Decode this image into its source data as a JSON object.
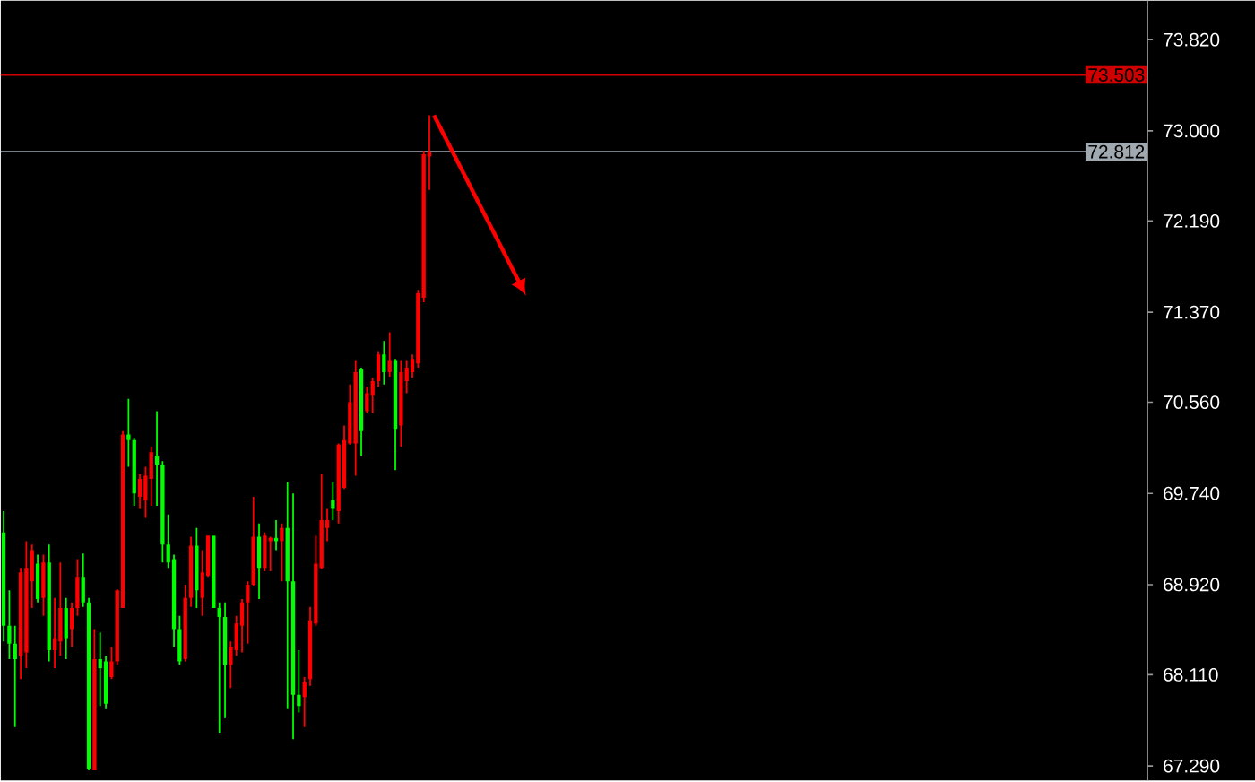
{
  "chart_data": {
    "type": "candlestick",
    "categories": [
      null,
      null,
      null,
      null,
      null,
      null,
      null,
      null,
      null,
      null,
      null,
      null,
      null,
      null,
      null,
      null,
      null,
      null,
      null,
      null,
      null,
      null,
      null,
      null,
      null,
      null,
      null,
      null,
      null,
      null,
      null,
      null,
      null,
      null,
      null,
      null,
      null,
      null,
      null,
      null,
      null,
      null,
      null,
      null,
      null,
      null,
      null,
      null,
      null,
      null,
      null,
      null,
      null,
      null,
      null,
      null,
      null,
      null,
      null,
      null,
      null,
      null,
      null,
      null,
      null,
      null,
      null,
      null,
      null,
      null,
      null,
      null,
      null,
      null,
      null,
      null,
      null,
      null,
      null,
      null,
      null,
      null,
      null,
      null,
      null,
      null,
      null,
      null,
      null,
      null,
      null,
      null,
      null,
      null,
      null,
      null,
      null,
      null,
      null,
      null,
      null,
      null,
      null,
      null,
      null,
      null,
      null,
      null,
      null,
      null,
      null,
      null,
      null,
      null,
      null,
      null,
      null,
      null,
      null,
      null,
      null,
      null,
      null,
      null,
      null,
      null,
      null,
      null,
      null,
      null,
      null,
      null,
      null,
      null,
      null,
      null,
      null,
      null,
      null,
      null,
      null,
      null,
      null,
      null,
      null,
      null,
      null,
      null,
      null,
      null,
      null,
      null,
      null,
      null,
      null,
      null,
      null,
      null,
      null,
      null,
      null,
      null,
      null,
      null,
      null,
      null,
      null,
      null,
      null,
      null,
      null,
      null,
      null,
      null,
      null,
      null,
      null,
      null,
      null,
      null,
      null,
      null,
      null,
      null,
      null,
      null,
      null,
      null,
      null,
      null,
      null,
      null,
      null,
      null,
      null,
      null,
      null,
      null,
      null,
      null,
      null,
      null
    ],
    "ohlc": [
      [
        69.39,
        69.58,
        68.41,
        68.55
      ],
      [
        68.55,
        68.87,
        68.25,
        68.39
      ],
      [
        68.39,
        68.55,
        67.64,
        68.25
      ],
      [
        68.28,
        69.07,
        68.07,
        69.03
      ],
      [
        68.31,
        69.31,
        68.17,
        69.07
      ],
      [
        68.95,
        69.28,
        68.71,
        69.23
      ],
      [
        69.11,
        69.19,
        68.76,
        68.79
      ],
      [
        68.8,
        69.19,
        68.64,
        69.12
      ],
      [
        69.12,
        69.28,
        68.23,
        68.33
      ],
      [
        68.33,
        68.8,
        68.17,
        68.44
      ],
      [
        68.41,
        69.12,
        68.28,
        68.71
      ],
      [
        68.71,
        68.8,
        68.25,
        68.44
      ],
      [
        68.52,
        68.76,
        68.36,
        68.71
      ],
      [
        68.71,
        69.15,
        68.64,
        68.99
      ],
      [
        68.99,
        69.2,
        68.72,
        68.76
      ],
      [
        68.76,
        68.8,
        67.25,
        67.26
      ],
      [
        67.25,
        68.52,
        67.25,
        68.25
      ],
      [
        68.25,
        68.49,
        67.83,
        68.17
      ],
      [
        68.23,
        68.28,
        67.8,
        67.85
      ],
      [
        68.09,
        68.36,
        68.07,
        68.23
      ],
      [
        68.23,
        68.88,
        68.2,
        68.87
      ],
      [
        68.71,
        70.3,
        68.71,
        70.27
      ],
      [
        70.27,
        70.59,
        69.98,
        70.22
      ],
      [
        70.22,
        70.24,
        69.63,
        69.74
      ],
      [
        69.71,
        69.92,
        69.6,
        69.87
      ],
      [
        69.68,
        69.98,
        69.52,
        69.9
      ],
      [
        69.87,
        70.16,
        69.63,
        70.11
      ],
      [
        70.08,
        70.48,
        69.63,
        70.0
      ],
      [
        70.0,
        70.03,
        69.12,
        69.28
      ],
      [
        69.28,
        69.55,
        69.07,
        69.12
      ],
      [
        69.15,
        69.19,
        68.36,
        68.52
      ],
      [
        68.52,
        68.64,
        68.2,
        68.23
      ],
      [
        68.25,
        68.92,
        68.23,
        68.8
      ],
      [
        68.8,
        69.35,
        68.72,
        69.27
      ],
      [
        69.27,
        69.43,
        68.71,
        68.87
      ],
      [
        68.8,
        69.23,
        68.64,
        69.03
      ],
      [
        69.0,
        69.36,
        68.99,
        69.36
      ],
      [
        69.36,
        69.36,
        68.71,
        68.71
      ],
      [
        68.71,
        68.76,
        67.59,
        68.63
      ],
      [
        68.63,
        68.76,
        67.72,
        68.2
      ],
      [
        68.2,
        68.41,
        67.99,
        68.36
      ],
      [
        68.33,
        68.64,
        68.28,
        68.57
      ],
      [
        68.55,
        68.79,
        68.31,
        68.76
      ],
      [
        68.76,
        68.95,
        68.39,
        68.92
      ],
      [
        68.92,
        69.71,
        68.91,
        69.35
      ],
      [
        69.35,
        69.47,
        68.79,
        69.07
      ],
      [
        69.07,
        69.39,
        69.04,
        69.36
      ],
      [
        69.31,
        69.35,
        69.04,
        69.34
      ],
      [
        69.34,
        69.5,
        69.23,
        69.31
      ],
      [
        69.31,
        69.47,
        68.95,
        69.43
      ],
      [
        69.43,
        69.84,
        67.8,
        68.95
      ],
      [
        68.95,
        69.74,
        67.53,
        67.93
      ],
      [
        67.93,
        68.33,
        67.77,
        67.83
      ],
      [
        67.91,
        68.09,
        67.64,
        68.04
      ],
      [
        68.07,
        68.72,
        68.01,
        68.6
      ],
      [
        68.57,
        69.36,
        68.55,
        69.11
      ],
      [
        69.07,
        69.92,
        69.06,
        69.5
      ],
      [
        69.43,
        69.6,
        69.31,
        69.5
      ],
      [
        69.68,
        69.84,
        69.5,
        69.6
      ],
      [
        69.58,
        70.19,
        69.47,
        70.18
      ],
      [
        69.79,
        70.35,
        69.78,
        70.22
      ],
      [
        70.19,
        70.72,
        70.18,
        70.56
      ],
      [
        70.19,
        70.94,
        69.9,
        70.83
      ],
      [
        70.86,
        70.87,
        70.08,
        70.3
      ],
      [
        70.48,
        70.7,
        70.46,
        70.64
      ],
      [
        70.62,
        70.78,
        70.46,
        70.75
      ],
      [
        70.75,
        71.02,
        70.7,
        70.99
      ],
      [
        70.99,
        71.11,
        70.72,
        70.83
      ],
      [
        70.83,
        71.19,
        70.79,
        70.94
      ],
      [
        70.94,
        70.95,
        69.95,
        70.32
      ],
      [
        70.35,
        70.94,
        70.16,
        70.83
      ],
      [
        70.75,
        70.94,
        70.64,
        70.87
      ],
      [
        70.83,
        70.99,
        70.78,
        70.95
      ],
      [
        70.91,
        71.57,
        70.87,
        71.54
      ],
      [
        71.5,
        72.82,
        71.46,
        72.79
      ],
      [
        72.77,
        73.14,
        72.47,
        72.81
      ],
      null,
      null,
      null,
      null,
      null,
      null,
      null,
      null,
      null,
      null,
      null,
      null,
      null,
      null,
      null,
      null,
      null,
      null,
      null,
      null,
      null,
      null,
      null,
      null,
      null,
      null,
      null,
      null,
      null,
      null,
      null,
      null,
      null,
      null,
      null,
      null,
      null,
      null,
      null,
      null,
      null,
      null,
      null,
      null,
      null,
      null,
      null,
      null,
      null,
      null,
      null,
      null,
      null,
      null,
      null,
      null,
      null,
      null,
      null,
      null,
      null,
      null,
      null,
      null,
      null,
      null,
      null,
      null,
      null,
      null,
      null,
      null,
      null,
      null,
      null,
      null,
      null,
      null,
      null,
      null,
      null,
      null,
      null,
      null,
      null,
      null,
      null,
      null,
      null,
      null,
      null,
      null,
      null,
      null,
      null,
      null,
      null,
      null,
      null,
      null,
      null,
      null,
      null,
      null,
      null,
      null,
      null,
      null,
      null,
      null,
      null,
      null,
      null,
      null,
      null,
      null,
      null,
      null,
      null,
      null,
      null,
      null,
      null,
      null,
      null,
      null
    ],
    "colors": [
      "#00ff00",
      "#00ff00",
      "#00ff00",
      "#ff0000",
      "#ff0000",
      "#ff0000",
      "#00ff00",
      "#ff0000",
      "#00ff00",
      "#ff0000",
      "#ff0000",
      "#00ff00",
      "#ff0000",
      "#ff0000",
      "#00ff00",
      "#00ff00",
      "#ff0000",
      "#00ff00",
      "#00ff00",
      "#ff0000",
      "#ff0000",
      "#ff0000",
      "#00ff00",
      "#00ff00",
      "#ff0000",
      "#ff0000",
      "#ff0000",
      "#00ff00",
      "#00ff00",
      "#00ff00",
      "#00ff00",
      "#00ff00",
      "#ff0000",
      "#ff0000",
      "#00ff00",
      "#ff0000",
      "#ff0000",
      "#00ff00",
      "#00ff00",
      "#00ff00",
      "#ff0000",
      "#ff0000",
      "#ff0000",
      "#ff0000",
      "#ff0000",
      "#00ff00",
      "#ff0000",
      "#ff0000",
      "#00ff00",
      "#ff0000",
      "#00ff00",
      "#00ff00",
      "#00ff00",
      "#ff0000",
      "#ff0000",
      "#ff0000",
      "#ff0000",
      "#ff0000",
      "#00ff00",
      "#ff0000",
      "#ff0000",
      "#ff0000",
      "#ff0000",
      "#00ff00",
      "#ff0000",
      "#ff0000",
      "#ff0000",
      "#00ff00",
      "#ff0000",
      "#00ff00",
      "#ff0000",
      "#ff0000",
      "#ff0000",
      "#ff0000",
      "#ff0000",
      "#ff0000",
      null,
      null,
      null,
      null,
      null,
      null,
      null,
      null,
      null,
      null,
      null,
      null,
      null,
      null,
      null,
      null,
      null,
      null,
      null,
      null,
      null,
      null,
      null,
      null,
      null,
      null,
      null,
      null,
      null,
      null,
      null,
      null,
      null,
      null,
      null,
      null,
      null,
      null,
      null,
      null,
      null,
      null,
      null,
      null,
      null,
      null,
      null,
      null,
      null,
      null,
      null,
      null,
      null,
      null,
      null,
      null,
      null,
      null,
      null,
      null,
      null,
      null,
      null,
      null,
      null,
      null,
      null,
      null,
      null,
      null,
      null,
      null,
      null,
      null,
      null,
      null,
      null,
      null,
      null,
      null,
      null,
      null,
      null,
      null,
      null,
      null,
      null,
      null,
      null,
      null,
      null,
      null,
      null,
      null,
      null,
      null,
      null,
      null,
      null,
      null,
      null,
      null,
      null,
      null,
      null,
      null,
      null,
      null,
      null,
      null,
      null,
      null,
      null,
      null,
      null,
      null,
      null,
      null,
      null,
      null,
      null,
      null,
      null,
      null,
      null,
      null
    ],
    "ylim": [
      67.16,
      74.17
    ],
    "yticks": [
      {
        "value": 73.82,
        "label": "73.820"
      },
      {
        "value": 73.0,
        "label": "73.000"
      },
      {
        "value": 72.19,
        "label": "72.190"
      },
      {
        "value": 71.37,
        "label": "71.370"
      },
      {
        "value": 70.56,
        "label": "70.560"
      },
      {
        "value": 69.74,
        "label": "69.740"
      },
      {
        "value": 68.92,
        "label": "68.920"
      },
      {
        "value": 68.11,
        "label": "68.110"
      },
      {
        "value": 67.29,
        "label": "67.290"
      }
    ],
    "tick_labels": "y",
    "ref_lines": [
      {
        "axis": "y",
        "value": 73.503,
        "label": "73.503",
        "color": "#d00000"
      },
      {
        "axis": "y",
        "value": 72.812,
        "label": "72.812",
        "color": "#a0a8b0"
      }
    ]
  }
}
